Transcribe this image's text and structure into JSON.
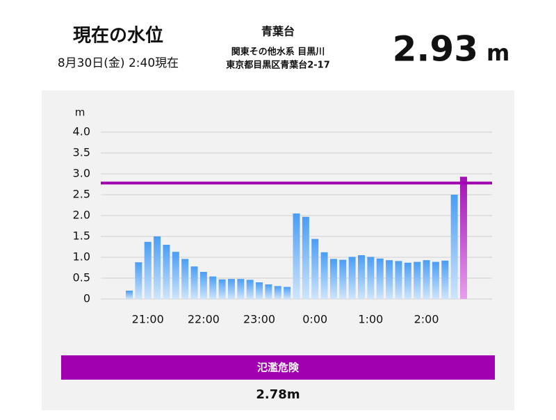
{
  "header": {
    "title": "現在の水位",
    "datetime": "8月30日(金) 2:40現在",
    "station": "青葉台",
    "river": "関東その他水系 目黒川",
    "address": "東京都目黒区青葉台2-17",
    "level": 2.93,
    "unit": "m"
  },
  "chart_data": {
    "type": "bar",
    "y_label": "m",
    "categories": [
      null,
      null,
      "21:00",
      null,
      null,
      null,
      null,
      null,
      "22:00",
      null,
      null,
      null,
      null,
      null,
      "23:00",
      null,
      null,
      null,
      null,
      null,
      "0:00",
      null,
      null,
      null,
      null,
      null,
      "1:00",
      null,
      null,
      null,
      null,
      null,
      "2:00",
      null,
      null,
      null,
      null
    ],
    "values": [
      0.2,
      0.88,
      1.37,
      1.5,
      1.3,
      1.13,
      0.96,
      0.78,
      0.65,
      0.54,
      0.47,
      0.48,
      0.48,
      0.46,
      0.4,
      0.35,
      0.31,
      0.29,
      2.05,
      1.97,
      1.44,
      1.12,
      0.96,
      0.94,
      1.01,
      1.05,
      1.01,
      0.97,
      0.93,
      0.91,
      0.87,
      0.89,
      0.93,
      0.89,
      0.92,
      2.5,
      2.93
    ],
    "color": "#4a9df5",
    "highlight_color": "#a10fb5",
    "ylim": [
      0,
      4
    ],
    "yticks": [
      0,
      0.5,
      {
        "value": 1,
        "label": "1.0"
      },
      1.5,
      {
        "value": 2,
        "label": "2.0"
      },
      2.5,
      {
        "value": 3,
        "label": "3.0"
      },
      3.5,
      {
        "value": 4,
        "label": "4.0"
      }
    ],
    "grid": true,
    "threshold": {
      "name": "氾濫危険",
      "value": 2.78,
      "value_label": "2.78m",
      "color": "#a000b0"
    }
  }
}
